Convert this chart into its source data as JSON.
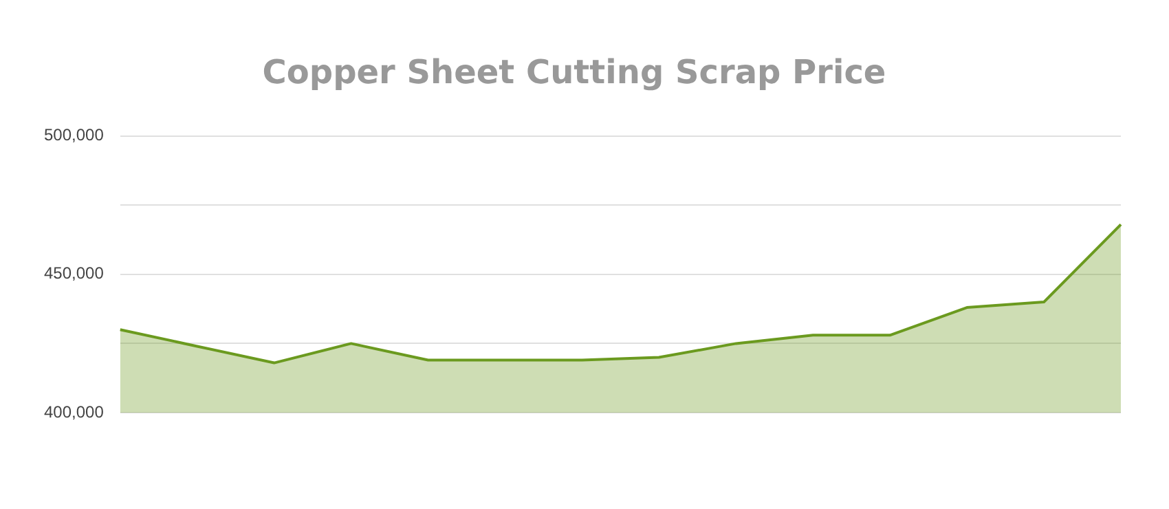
{
  "chart_data": {
    "type": "area",
    "title": "Copper Sheet Cutting Scrap Price",
    "categories": [
      null,
      null,
      null,
      null,
      null,
      null,
      null,
      null,
      null,
      null,
      null,
      null,
      null,
      null
    ],
    "series": [
      {
        "color": "#6b9a1f",
        "values": [
          430000,
          424000,
          418000,
          425000,
          419000,
          419000,
          419000,
          420000,
          425000,
          428000,
          428000,
          438000,
          440000,
          468000
        ]
      }
    ],
    "ylim": [
      400000,
      500000
    ],
    "yticks": [
      {
        "value": 400000,
        "label": "400,000"
      },
      {
        "value": 425000,
        "label": null
      },
      {
        "value": 450000,
        "label": "450,000"
      },
      {
        "value": 475000,
        "label": null
      },
      {
        "value": 500000,
        "label": "500,000"
      }
    ],
    "grid": "y",
    "legend": false,
    "tick_labels": "y",
    "marker": "none",
    "line_style": "solid"
  }
}
